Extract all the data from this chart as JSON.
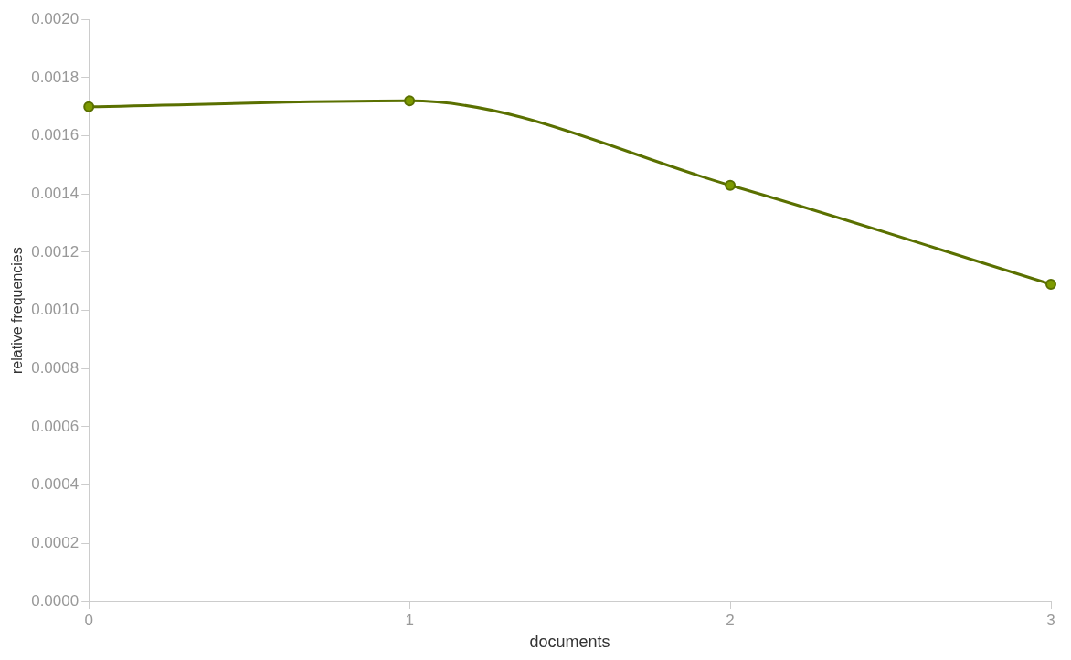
{
  "chart_data": {
    "type": "line",
    "xlabel": "documents",
    "ylabel": "relative frequencies",
    "x": [
      0,
      1,
      2,
      3
    ],
    "series": [
      {
        "color": "#5a7000",
        "values": [
          0.0017,
          0.00172,
          0.00143,
          0.00109
        ]
      }
    ],
    "xlim": [
      0,
      3
    ],
    "xticks": [
      0,
      1,
      2,
      3
    ],
    "ylim": [
      0,
      0.002
    ],
    "yticks": [
      {
        "value": 0,
        "label": "0.0000"
      },
      {
        "value": 0.0002,
        "label": "0.0002"
      },
      {
        "value": 0.0004,
        "label": "0.0004"
      },
      {
        "value": 0.0006,
        "label": "0.0006"
      },
      {
        "value": 0.0008,
        "label": "0.0008"
      },
      {
        "value": 0.001,
        "label": "0.0010"
      },
      {
        "value": 0.0012,
        "label": "0.0012"
      },
      {
        "value": 0.0014,
        "label": "0.0014"
      },
      {
        "value": 0.0016,
        "label": "0.0016"
      },
      {
        "value": 0.0018,
        "label": "0.0018"
      },
      {
        "value": 0.002,
        "label": "0.0020"
      }
    ],
    "grid": false,
    "legend": false,
    "marker": "circle"
  }
}
